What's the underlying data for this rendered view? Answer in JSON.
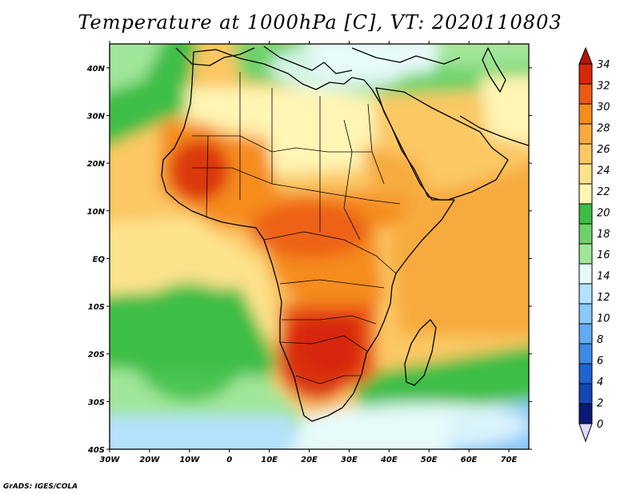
{
  "title": "Temperature at 1000hPa [C], VT: 2020110803",
  "footer": "GrADS: IGES/COLA",
  "map": {
    "lon_range": [
      -30,
      75
    ],
    "lat_range": [
      -40,
      45
    ],
    "lon_ticks": [
      {
        "value": -30,
        "label": "30W"
      },
      {
        "value": -20,
        "label": "20W"
      },
      {
        "value": -10,
        "label": "10W"
      },
      {
        "value": 0,
        "label": "0"
      },
      {
        "value": 10,
        "label": "10E"
      },
      {
        "value": 20,
        "label": "20E"
      },
      {
        "value": 30,
        "label": "30E"
      },
      {
        "value": 40,
        "label": "40E"
      },
      {
        "value": 50,
        "label": "50E"
      },
      {
        "value": 60,
        "label": "60E"
      },
      {
        "value": 70,
        "label": "70E"
      }
    ],
    "lat_ticks": [
      {
        "value": 40,
        "label": "40N"
      },
      {
        "value": 30,
        "label": "30N"
      },
      {
        "value": 20,
        "label": "20N"
      },
      {
        "value": 10,
        "label": "10N"
      },
      {
        "value": 0,
        "label": "EQ"
      },
      {
        "value": -10,
        "label": "10S"
      },
      {
        "value": -20,
        "label": "20S"
      },
      {
        "value": -30,
        "label": "30S"
      },
      {
        "value": -40,
        "label": "40S"
      }
    ]
  },
  "colorbar": {
    "labels": [
      "0",
      "2",
      "4",
      "6",
      "8",
      "10",
      "12",
      "14",
      "16",
      "18",
      "20",
      "22",
      "24",
      "26",
      "28",
      "30",
      "32",
      "34"
    ],
    "colors": [
      "#0a1a78",
      "#1446b4",
      "#1e64d2",
      "#3c8ce6",
      "#64aaf0",
      "#8cc8f8",
      "#b4e1fc",
      "#e6fafa",
      "#a0e69a",
      "#6ed26a",
      "#3cbe46",
      "#fff5b4",
      "#fde28c",
      "#fbc864",
      "#f7aa3c",
      "#f58c1e",
      "#eb5a14",
      "#d7280a",
      "#b4140a"
    ],
    "below_color": "#dcdcff"
  },
  "chart_data": {
    "type": "heatmap",
    "variable": "Temperature at 1000hPa",
    "units": "C",
    "valid_time": "2020110803",
    "x": {
      "range": [
        -30,
        75
      ]
    },
    "y": {
      "range": [
        -40,
        45
      ]
    },
    "contour_levels": [
      0,
      2,
      4,
      6,
      8,
      10,
      12,
      14,
      16,
      18,
      20,
      22,
      24,
      26,
      28,
      30,
      32,
      34
    ],
    "regions": [
      {
        "lon_range": [
          -15,
          0
        ],
        "lat_range": [
          12,
          25
        ],
        "value": 33
      },
      {
        "lon_range": [
          5,
          35
        ],
        "lat_range": [
          0,
          12
        ],
        "value": 30
      },
      {
        "lon_range": [
          12,
          32
        ],
        "lat_range": [
          -30,
          -12
        ],
        "value": 33
      },
      {
        "lon_range": [
          -5,
          30
        ],
        "lat_range": [
          25,
          32
        ],
        "value": 20
      },
      {
        "lon_range": [
          10,
          45
        ],
        "lat_range": [
          35,
          45
        ],
        "value": 12
      },
      {
        "lon_range": [
          40,
          70
        ],
        "lat_range": [
          -10,
          15
        ],
        "value": 27
      },
      {
        "lon_range": [
          -25,
          5
        ],
        "lat_range": [
          -30,
          -5
        ],
        "value": 19
      },
      {
        "lon_range": [
          20,
          75
        ],
        "lat_range": [
          -40,
          -30
        ],
        "value": 12
      }
    ]
  }
}
